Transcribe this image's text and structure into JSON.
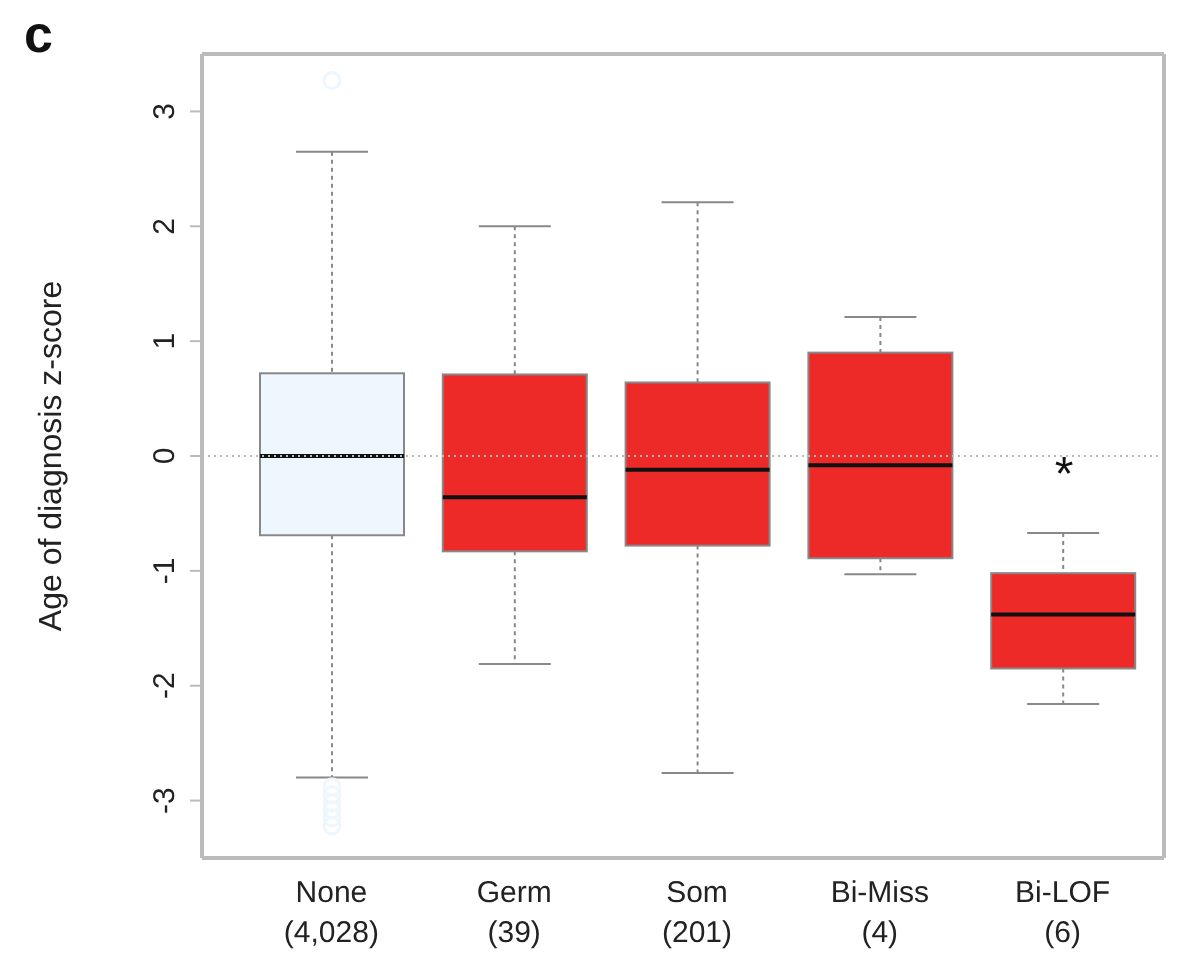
{
  "chart_data": {
    "type": "box",
    "title": "c",
    "ylabel": "Age of diagnosis z-score",
    "categories": [
      "None\n(4,028)",
      "Germ\n(39)",
      "Som\n(201)",
      "Bi-Miss\n(4)",
      "Bi-LOF\n(6)"
    ],
    "boxes": [
      {
        "low": -2.8,
        "q1": -0.69,
        "median": 0,
        "q3": 0.72,
        "high": 2.65,
        "outliers": [
          3.27,
          -2.88,
          -2.95,
          -3.02,
          -3.08,
          -3.15,
          -3.22
        ]
      },
      {
        "low": -1.81,
        "q1": -0.83,
        "median": -0.36,
        "q3": 0.71,
        "high": 2.0
      },
      {
        "low": -2.76,
        "q1": -0.78,
        "median": -0.12,
        "q3": 0.64,
        "high": 2.21
      },
      {
        "low": -1.03,
        "q1": -0.89,
        "median": -0.08,
        "q3": 0.9,
        "high": 1.21
      },
      {
        "low": -2.16,
        "q1": -1.85,
        "median": -1.38,
        "q3": -1.02,
        "high": -0.67
      }
    ],
    "colors": [
      "#eef6fe",
      "#ee2a29",
      "#ee2a29",
      "#ee2a29",
      "#ee2a29"
    ],
    "ylim": [
      -3.5,
      3.5
    ],
    "yticks": [
      -3,
      -2,
      -1,
      0,
      1,
      2,
      3
    ],
    "ref_lines": [
      {
        "axis": "y",
        "value": 0,
        "color": "#bbbbbb",
        "line_style": "dotted"
      }
    ],
    "annotations": [
      "*"
    ]
  }
}
